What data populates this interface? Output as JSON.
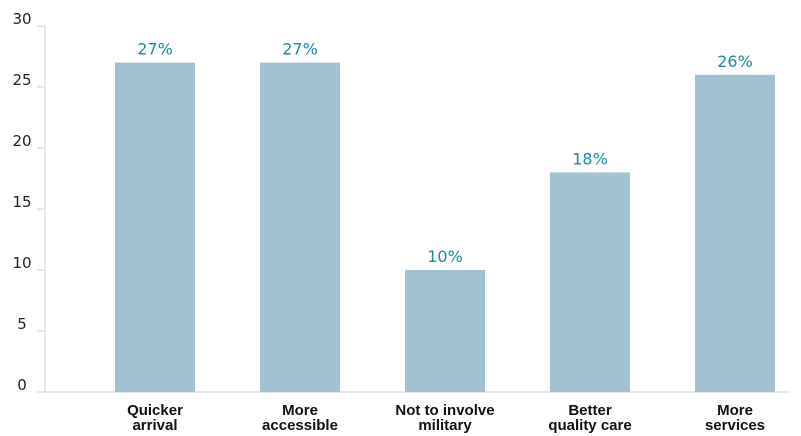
{
  "chart_data": {
    "type": "bar",
    "categories": [
      [
        "Quicker",
        "arrival"
      ],
      [
        "More",
        "accessible"
      ],
      [
        "Not to involve",
        "military"
      ],
      [
        "Better",
        "quality care"
      ],
      [
        "More",
        "services"
      ]
    ],
    "values": [
      27,
      27,
      10,
      18,
      26
    ],
    "data_labels": [
      "27%",
      "27%",
      "10%",
      "18%",
      "26%"
    ],
    "y_ticks": [
      0,
      5,
      10,
      15,
      20,
      25,
      30
    ],
    "ylim": [
      0,
      30
    ],
    "grid": false,
    "title": "",
    "xlabel": "",
    "ylabel": "",
    "colors": {
      "bar": "#a3c2d1",
      "data_label": "#1a8aa0",
      "axis": "#cfcfcf"
    }
  }
}
